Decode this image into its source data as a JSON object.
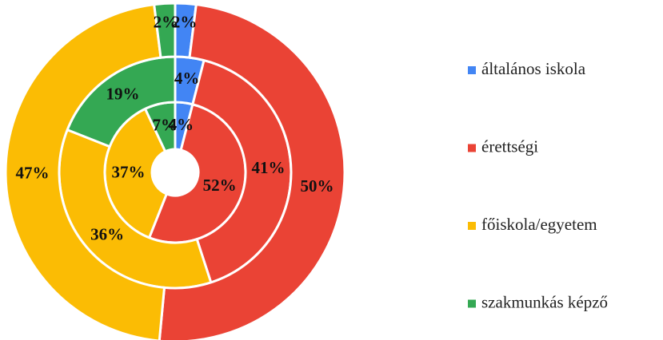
{
  "chart_data": {
    "type": "pie",
    "categories": [
      "általános iskola",
      "érettségi",
      "főiskola/egyetem",
      "szakmunkás képző"
    ],
    "colors": [
      "#4285f4",
      "#ea4335",
      "#fbbc04",
      "#34a853"
    ],
    "series": [
      {
        "values": [
          4,
          52,
          37,
          7
        ],
        "value_labels": [
          "4%",
          "52%",
          "37%",
          "7%"
        ]
      },
      {
        "values": [
          4,
          41,
          36,
          19
        ],
        "value_labels": [
          "4%",
          "41%",
          "36%",
          "19%"
        ]
      },
      {
        "values": [
          2,
          50,
          47,
          2
        ],
        "value_labels": [
          "2%",
          "50%",
          "47%",
          "2%"
        ]
      }
    ]
  }
}
